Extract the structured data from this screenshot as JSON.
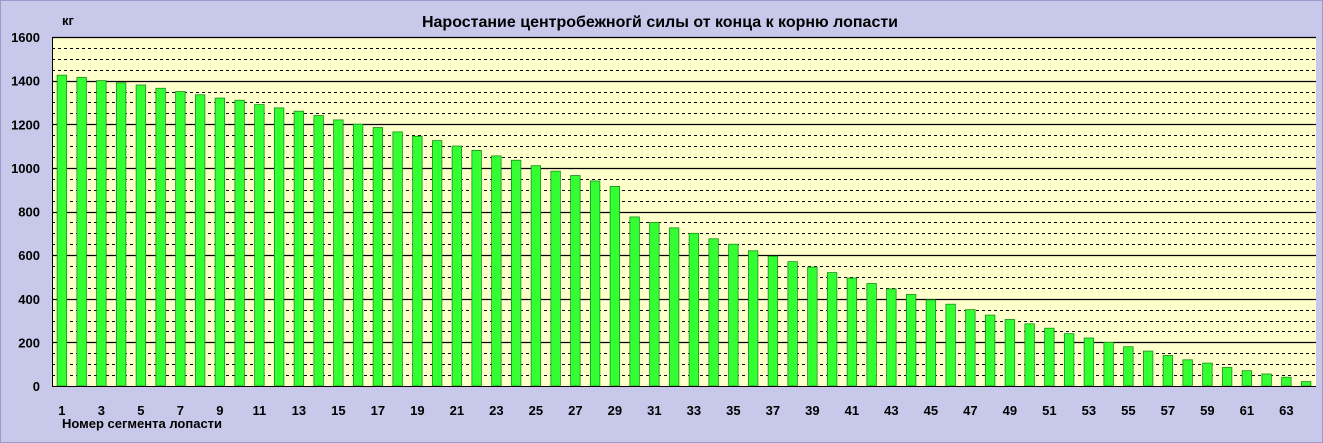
{
  "chart_data": {
    "type": "bar",
    "title": "Наростание центробежногй силы от конца к корню лопасти",
    "ylabel": "кг",
    "xlabel": "Номер сегмента лопасти",
    "ylim": [
      0,
      1600
    ],
    "y_major_ticks": [
      0,
      200,
      400,
      600,
      800,
      1000,
      1200,
      1400,
      1600
    ],
    "y_minor_step": 50,
    "grid": true,
    "legend": "none",
    "categories": [
      1,
      2,
      3,
      4,
      5,
      6,
      7,
      8,
      9,
      10,
      11,
      12,
      13,
      14,
      15,
      16,
      17,
      18,
      19,
      20,
      21,
      22,
      23,
      24,
      25,
      26,
      27,
      28,
      29,
      30,
      31,
      32,
      33,
      34,
      35,
      36,
      37,
      38,
      39,
      40,
      41,
      42,
      43,
      44,
      45,
      46,
      47,
      48,
      49,
      50,
      51,
      52,
      53,
      54,
      55,
      56,
      57,
      58,
      59,
      60,
      61,
      62,
      63,
      64
    ],
    "x_tick_labels": [
      "1",
      "3",
      "5",
      "7",
      "9",
      "11",
      "13",
      "15",
      "17",
      "19",
      "21",
      "23",
      "25",
      "27",
      "29",
      "31",
      "33",
      "35",
      "37",
      "39",
      "41",
      "43",
      "45",
      "47",
      "49",
      "51",
      "53",
      "55",
      "57",
      "59",
      "61",
      "63"
    ],
    "values": [
      1425,
      1415,
      1400,
      1390,
      1380,
      1365,
      1350,
      1335,
      1320,
      1310,
      1290,
      1275,
      1260,
      1240,
      1220,
      1200,
      1185,
      1165,
      1145,
      1125,
      1100,
      1080,
      1055,
      1035,
      1010,
      985,
      965,
      940,
      915,
      775,
      750,
      725,
      700,
      675,
      650,
      620,
      595,
      570,
      545,
      520,
      495,
      470,
      445,
      420,
      395,
      375,
      350,
      325,
      305,
      285,
      265,
      240,
      220,
      200,
      180,
      160,
      140,
      120,
      105,
      85,
      70,
      55,
      40,
      20
    ],
    "colors": {
      "plot_background": "#ffffcc",
      "frame_background": "#c8c8ea",
      "bar_fill": "#33ff33",
      "bar_stroke": "#1a8f1a",
      "major_grid": "#000000",
      "minor_grid": "#000000"
    }
  }
}
